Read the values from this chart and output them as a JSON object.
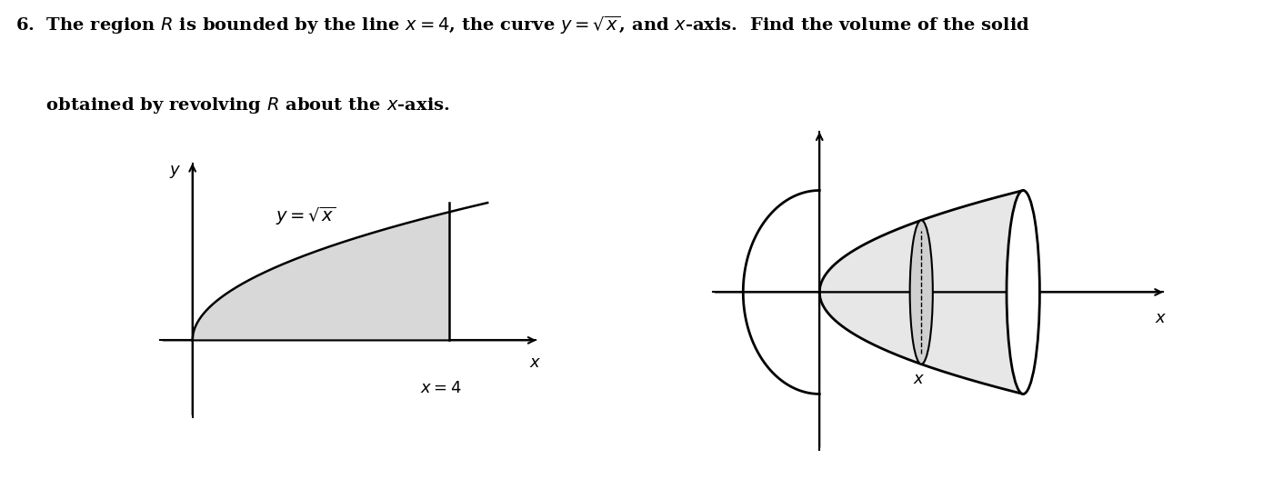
{
  "background_color": "#ffffff",
  "fig_width": 14.11,
  "fig_height": 5.27,
  "shading_color_left": "#d8d8d8",
  "shading_color_right": "#d0d0d0",
  "font_size_text": 14,
  "font_size_label": 13,
  "font_size_eq": 14
}
